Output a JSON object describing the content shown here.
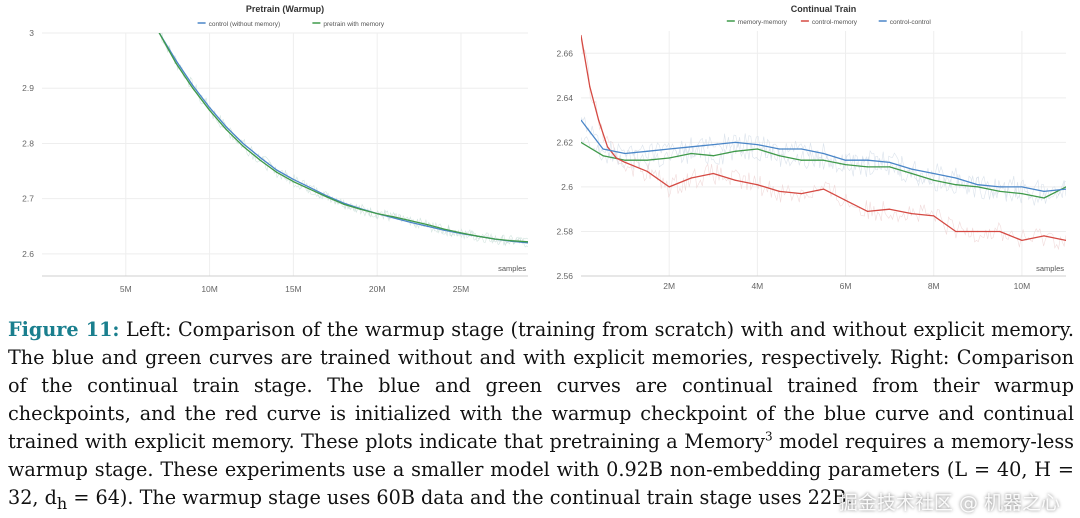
{
  "figure": {
    "label": "Figure 11:",
    "caption_parts": [
      " Left: Comparison of the warmup stage (training from scratch) with and without explicit memory. The blue and green curves are trained without and with explicit memories, respectively. Right: Comparison of the continual train stage. The blue and green curves are continual trained from their warmup checkpoints, and the red curve is initialized with the warmup checkpoint of the blue curve and continual trained with explicit memory. These plots indicate that pretraining a Memory",
      "3",
      " model requires a memory-less warmup stage. These experiments use a smaller model with 0.92B non-embedding parameters (L = 40, H = 32, d",
      "h",
      " = 64). The warmup stage uses 60B data and the continual train stage uses 22B."
    ]
  },
  "watermark": "掘金技术社区 @ 机器之心",
  "chart_data": [
    {
      "type": "line",
      "title": "Pretrain (Warmup)",
      "xlabel": "samples",
      "ylabel": "",
      "xlim": [
        0,
        29000000
      ],
      "ylim": [
        2.56,
        3.0
      ],
      "x_ticks": [
        5000000,
        10000000,
        15000000,
        20000000,
        25000000
      ],
      "x_tick_labels": [
        "5M",
        "10M",
        "15M",
        "20M",
        "25M"
      ],
      "y_ticks": [
        2.6,
        2.7,
        2.8,
        2.9,
        3.0
      ],
      "y_tick_labels": [
        "2.6",
        "2.7",
        "2.8",
        "2.9",
        "3"
      ],
      "grid": true,
      "legend_position": "top",
      "series": [
        {
          "name": "control (without memory)",
          "color": "#4a86c8",
          "x": [
            7000000,
            8000000,
            9000000,
            10000000,
            11000000,
            12000000,
            13000000,
            14000000,
            15000000,
            16000000,
            17000000,
            18000000,
            19000000,
            20000000,
            21000000,
            22000000,
            23000000,
            24000000,
            25000000,
            26000000,
            27000000,
            28000000,
            29000000
          ],
          "values": [
            3.0,
            2.95,
            2.905,
            2.865,
            2.83,
            2.8,
            2.775,
            2.752,
            2.735,
            2.72,
            2.705,
            2.692,
            2.682,
            2.673,
            2.665,
            2.657,
            2.65,
            2.643,
            2.637,
            2.632,
            2.627,
            2.623,
            2.62
          ]
        },
        {
          "name": "pretrain with memory",
          "color": "#3f9a4a",
          "x": [
            7000000,
            8000000,
            9000000,
            10000000,
            11000000,
            12000000,
            13000000,
            14000000,
            15000000,
            16000000,
            17000000,
            18000000,
            19000000,
            20000000,
            21000000,
            22000000,
            23000000,
            24000000,
            25000000,
            26000000,
            27000000,
            28000000,
            29000000
          ],
          "values": [
            3.0,
            2.945,
            2.9,
            2.86,
            2.825,
            2.795,
            2.77,
            2.748,
            2.731,
            2.717,
            2.703,
            2.69,
            2.681,
            2.673,
            2.667,
            2.66,
            2.653,
            2.645,
            2.638,
            2.632,
            2.627,
            2.624,
            2.622
          ]
        }
      ]
    },
    {
      "type": "line",
      "title": "Continual Train",
      "xlabel": "samples",
      "ylabel": "",
      "xlim": [
        0,
        11000000
      ],
      "ylim": [
        2.56,
        2.67
      ],
      "x_ticks": [
        2000000,
        4000000,
        6000000,
        8000000,
        10000000
      ],
      "x_tick_labels": [
        "2M",
        "4M",
        "6M",
        "8M",
        "10M"
      ],
      "y_ticks": [
        2.56,
        2.58,
        2.6,
        2.62,
        2.64,
        2.66
      ],
      "y_tick_labels": [
        "2.56",
        "2.58",
        "2.6",
        "2.62",
        "2.64",
        "2.66"
      ],
      "grid": true,
      "legend_position": "top",
      "series": [
        {
          "name": "memory-memory",
          "color": "#3f9a4a",
          "x": [
            0,
            500000,
            1000000,
            1500000,
            2000000,
            2500000,
            3000000,
            3500000,
            4000000,
            4500000,
            5000000,
            5500000,
            6000000,
            6500000,
            7000000,
            7500000,
            8000000,
            8500000,
            9000000,
            9500000,
            10000000,
            10500000,
            11000000
          ],
          "values": [
            2.62,
            2.614,
            2.612,
            2.612,
            2.613,
            2.615,
            2.614,
            2.616,
            2.617,
            2.614,
            2.612,
            2.612,
            2.61,
            2.609,
            2.609,
            2.606,
            2.603,
            2.601,
            2.6,
            2.598,
            2.597,
            2.595,
            2.6
          ]
        },
        {
          "name": "control-memory",
          "color": "#d54a43",
          "x": [
            0,
            200000,
            400000,
            600000,
            800000,
            1000000,
            1500000,
            2000000,
            2500000,
            3000000,
            3500000,
            4000000,
            4500000,
            5000000,
            5500000,
            6000000,
            6500000,
            7000000,
            7500000,
            8000000,
            8500000,
            9000000,
            9500000,
            10000000,
            10500000,
            11000000
          ],
          "values": [
            2.668,
            2.645,
            2.63,
            2.618,
            2.613,
            2.611,
            2.607,
            2.6,
            2.604,
            2.606,
            2.603,
            2.601,
            2.598,
            2.597,
            2.599,
            2.594,
            2.589,
            2.59,
            2.588,
            2.587,
            2.58,
            2.58,
            2.58,
            2.576,
            2.578,
            2.576
          ]
        },
        {
          "name": "control-control",
          "color": "#4a86c8",
          "x": [
            0,
            500000,
            1000000,
            1500000,
            2000000,
            2500000,
            3000000,
            3500000,
            4000000,
            4500000,
            5000000,
            5500000,
            6000000,
            6500000,
            7000000,
            7500000,
            8000000,
            8500000,
            9000000,
            9500000,
            10000000,
            10500000,
            11000000
          ],
          "values": [
            2.63,
            2.617,
            2.615,
            2.616,
            2.617,
            2.618,
            2.619,
            2.62,
            2.619,
            2.617,
            2.617,
            2.615,
            2.612,
            2.612,
            2.611,
            2.608,
            2.606,
            2.604,
            2.601,
            2.6,
            2.6,
            2.598,
            2.599
          ]
        }
      ]
    }
  ]
}
